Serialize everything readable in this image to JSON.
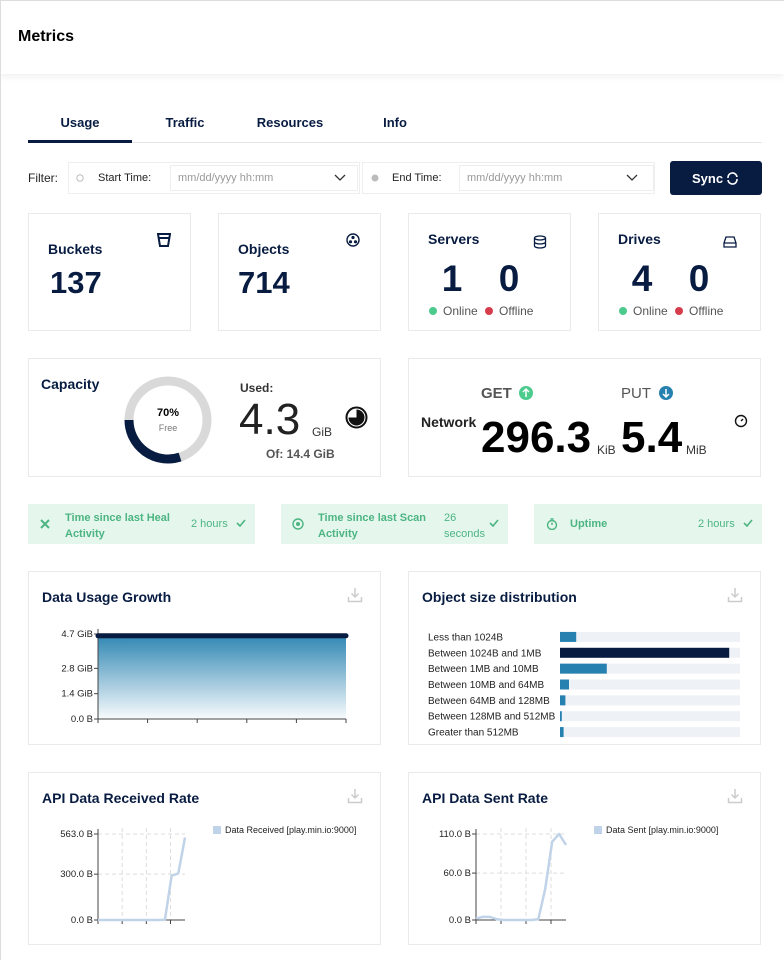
{
  "header": {
    "title": "Metrics"
  },
  "tabs": [
    "Usage",
    "Traffic",
    "Resources",
    "Info"
  ],
  "filter": {
    "label": "Filter:",
    "start_label": "Start Time:",
    "start_placeholder": "mm/dd/yyyy hh:mm",
    "end_label": "End Time:",
    "end_placeholder": "mm/dd/yyyy hh:mm",
    "sync": "Sync"
  },
  "summary": {
    "buckets": {
      "label": "Buckets",
      "value": 137
    },
    "objects": {
      "label": "Objects",
      "value": 714
    },
    "servers": {
      "label": "Servers",
      "online": 1,
      "offline": 0,
      "online_label": "Online",
      "offline_label": "Offline"
    },
    "drives": {
      "label": "Drives",
      "online": 4,
      "offline": 0,
      "online_label": "Online",
      "offline_label": "Offline"
    }
  },
  "capacity": {
    "label": "Capacity",
    "free": {
      "value": 70,
      "label": "70%"
    },
    "free_label": "Free",
    "used_label": "Used:",
    "used": 4.3,
    "used_unit": "GiB",
    "total": "Of: 14.4 GiB"
  },
  "network": {
    "label": "Network",
    "get_label": "GET",
    "put_label": "PUT",
    "get": 296.3,
    "get_unit": "KiB",
    "put": 5.4,
    "put_unit": "MiB"
  },
  "status": [
    {
      "label": "Time since last Heal Activity",
      "value": "2 hours"
    },
    {
      "label": "Time since last Scan Activity",
      "value": "26 seconds"
    },
    {
      "label": "Uptime",
      "value": "2 hours"
    }
  ],
  "chart_data": [
    {
      "type": "area",
      "title": "Data Usage Growth",
      "values": [
        4.6,
        4.6,
        4.6,
        4.6,
        4.6,
        4.6,
        4.6,
        4.6,
        4.6,
        4.6
      ],
      "color": "#081c42",
      "fill_color": "#2781b0",
      "ylim": [
        0,
        4.7
      ],
      "yticks": [
        {
          "value": 0,
          "label": "0.0 B"
        },
        {
          "value": 1.4,
          "label": "1.4 GiB"
        },
        {
          "value": 2.8,
          "label": "2.8 GiB"
        },
        {
          "value": 4.7,
          "label": "4.7 GiB"
        }
      ],
      "grid": false
    },
    {
      "type": "hbar",
      "title": "Object size distribution",
      "categories": [
        "Less than 1024B",
        "Between 1024B and 1MB",
        "Between 1MB and 10MB",
        "Between 10MB and 64MB",
        "Between 64MB and 128MB",
        "Between 128MB and 512MB",
        "Greater than 512MB"
      ],
      "values": [
        9,
        94,
        26,
        5,
        3,
        1,
        2
      ],
      "xlim": [
        0,
        100
      ],
      "colors": [
        "#2781b0",
        "#081c42",
        "#2781b0",
        "#2781b0",
        "#2781b0",
        "#2781b0",
        "#2781b0"
      ],
      "track_color": "#eef1f5"
    },
    {
      "type": "line",
      "title": "API Data Received Rate",
      "series": [
        {
          "name": "Data Received [play.min.io:9000]",
          "color": "#c0d3e8",
          "values": [
            0,
            0,
            0,
            0,
            0,
            0,
            0,
            0,
            0,
            0,
            2,
            290,
            305,
            540
          ]
        }
      ],
      "ylim": [
        0,
        563
      ],
      "yticks": [
        {
          "value": 0,
          "label": "0.0 B"
        },
        {
          "value": 300,
          "label": "300.0 B"
        },
        {
          "value": 563,
          "label": "563.0 B"
        }
      ],
      "grid": true
    },
    {
      "type": "line",
      "title": "API Data Sent Rate",
      "series": [
        {
          "name": "Data Sent [play.min.io:9000]",
          "color": "#c0d3e8",
          "values": [
            2,
            4,
            4,
            1,
            0,
            0,
            0,
            0,
            0,
            1,
            40,
            100,
            110,
            96
          ]
        }
      ],
      "ylim": [
        0,
        110
      ],
      "yticks": [
        {
          "value": 0,
          "label": "0.0 B"
        },
        {
          "value": 60,
          "label": "60.0 B"
        },
        {
          "value": 110,
          "label": "110.0 B"
        }
      ],
      "grid": true
    }
  ]
}
